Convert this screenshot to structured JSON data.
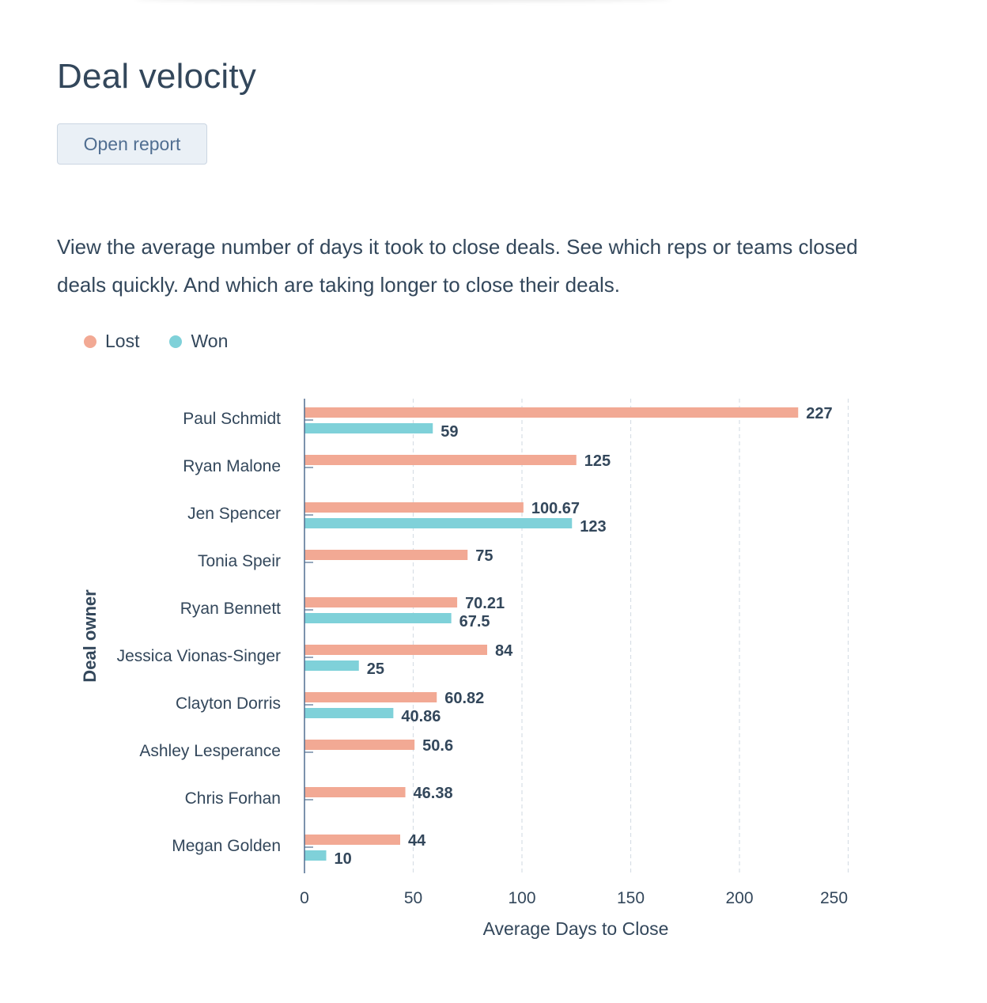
{
  "header": {
    "title": "Deal velocity",
    "open_report_label": "Open report"
  },
  "description": "View the average number of days it took to close deals. See which reps or teams closed deals quickly. And which are taking longer to close their deals.",
  "chart_data": {
    "type": "bar",
    "orientation": "horizontal",
    "xlabel": "Average Days to Close",
    "ylabel": "Deal owner",
    "xlim": [
      0,
      250
    ],
    "xticks": [
      0,
      50,
      100,
      150,
      200,
      250
    ],
    "grid": "vertical-dashed",
    "legend_position": "top-left",
    "categories": [
      "Paul Schmidt",
      "Ryan Malone",
      "Jen Spencer",
      "Tonia Speir",
      "Ryan Bennett",
      "Jessica Vionas-Singer",
      "Clayton Dorris",
      "Ashley Lesperance",
      "Chris Forhan",
      "Megan Golden"
    ],
    "series": [
      {
        "name": "Lost",
        "color": "#f2a994",
        "values": [
          227,
          125,
          100.67,
          75,
          70.21,
          84,
          60.82,
          50.6,
          46.38,
          44
        ]
      },
      {
        "name": "Won",
        "color": "#7fd1d9",
        "values": [
          59,
          null,
          123,
          null,
          67.5,
          25,
          40.86,
          null,
          null,
          10
        ]
      }
    ]
  }
}
